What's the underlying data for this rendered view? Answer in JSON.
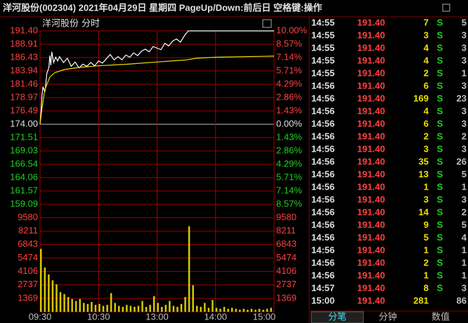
{
  "header": {
    "title": "洋河股份(002304)  2021年04月29日  星期四  PageUp/Down:前后日  空格键:操作"
  },
  "chart_data": {
    "type": "line",
    "title": "洋河股份",
    "subtitle": "分时",
    "xlim": [
      0,
      240
    ],
    "xticks": [
      {
        "value": 0,
        "label": "09:30"
      },
      {
        "value": 60,
        "label": "10:30"
      },
      {
        "value": 120,
        "label": "13:00"
      },
      {
        "value": 180,
        "label": "14:00"
      },
      {
        "value": 240,
        "label": "15:00"
      }
    ],
    "ylim": [
      156.6,
      191.4
    ],
    "yticks": [
      {
        "value": 191.4,
        "label": "191.40"
      },
      188.91,
      186.43,
      183.94,
      181.46,
      178.97,
      176.49,
      {
        "value": 174,
        "label": "174.00"
      },
      171.51,
      169.03,
      166.54,
      164.06,
      161.57,
      159.09
    ],
    "y2lim": [
      -10,
      10
    ],
    "y2ticks": [
      {
        "value": 10,
        "label": "10.00%"
      },
      {
        "value": 8.57,
        "label": "8.57%"
      },
      {
        "value": 7.14,
        "label": "7.14%"
      },
      {
        "value": 5.71,
        "label": "5.71%"
      },
      {
        "value": 4.29,
        "label": "4.29%"
      },
      {
        "value": 2.86,
        "label": "2.86%"
      },
      {
        "value": 1.43,
        "label": "1.43%"
      },
      {
        "value": 0,
        "label": "0.00%"
      },
      {
        "value": -1.43,
        "label": "1.43%"
      },
      {
        "value": -2.86,
        "label": "2.86%"
      },
      {
        "value": -4.29,
        "label": "4.29%"
      },
      {
        "value": -5.71,
        "label": "5.71%"
      },
      {
        "value": -7.14,
        "label": "7.14%"
      },
      {
        "value": -8.57,
        "label": "8.57%"
      }
    ],
    "grid": true,
    "series": [
      {
        "color": "#ffffff",
        "x": [
          0,
          1,
          2,
          3,
          5,
          7,
          9,
          10,
          11,
          12,
          14,
          16,
          18,
          20,
          24,
          28,
          32,
          36,
          40,
          44,
          48,
          52,
          56,
          60,
          64,
          68,
          72,
          76,
          80,
          84,
          88,
          92,
          96,
          100,
          104,
          108,
          112,
          116,
          120,
          124,
          128,
          132,
          136,
          140,
          144,
          148,
          152,
          240
        ],
        "values": [
          174.0,
          176.5,
          179.5,
          181.0,
          180.0,
          183.5,
          184.5,
          186.8,
          185.0,
          187.5,
          185.5,
          186.5,
          185.8,
          186.6,
          185.5,
          186.3,
          184.8,
          185.6,
          184.5,
          185.2,
          184.8,
          185.5,
          184.9,
          185.8,
          185.4,
          186.2,
          187.0,
          186.0,
          186.6,
          186.0,
          186.9,
          186.5,
          187.3,
          186.8,
          187.6,
          188.0,
          187.5,
          188.5,
          188.2,
          187.9,
          189.1,
          188.6,
          189.5,
          189.9,
          189.3,
          190.5,
          191.4,
          191.4
        ]
      },
      {
        "color": "#f0e000",
        "x": [
          0,
          2,
          5,
          10,
          15,
          25,
          40,
          60,
          90,
          120,
          150,
          160,
          180,
          210,
          240
        ],
        "values": [
          174.0,
          177.0,
          180.5,
          182.8,
          183.6,
          184.2,
          184.6,
          184.9,
          185.2,
          185.6,
          186.0,
          186.3,
          186.5,
          186.6,
          186.7
        ]
      }
    ],
    "volume": {
      "type": "bar",
      "color": "#d8c800",
      "ylim": [
        0,
        9580
      ],
      "yticks": [
        9580,
        8211,
        6843,
        5474,
        4106,
        2737,
        1369
      ],
      "x": [
        0,
        4,
        8,
        12,
        16,
        20,
        24,
        28,
        32,
        36,
        40,
        44,
        48,
        52,
        56,
        60,
        64,
        68,
        72,
        76,
        80,
        84,
        88,
        92,
        96,
        100,
        104,
        108,
        112,
        116,
        120,
        124,
        128,
        132,
        136,
        140,
        144,
        148,
        152,
        156,
        160,
        164,
        168,
        172,
        176,
        180,
        184,
        188,
        192,
        196,
        200,
        204,
        208,
        212,
        216,
        220,
        224,
        228,
        232,
        236
      ],
      "values": [
        6400,
        4500,
        3800,
        3200,
        2800,
        2000,
        1800,
        1500,
        1300,
        1100,
        1300,
        900,
        800,
        1000,
        700,
        800,
        600,
        700,
        1900,
        900,
        600,
        500,
        700,
        600,
        500,
        600,
        1100,
        500,
        700,
        1600,
        900,
        500,
        700,
        1100,
        600,
        500,
        800,
        1500,
        8700,
        2700,
        600,
        500,
        900,
        400,
        1200,
        400,
        300,
        500,
        300,
        400,
        300,
        200,
        300,
        200,
        300,
        200,
        300,
        200,
        300,
        400
      ]
    }
  },
  "trades": {
    "rows": [
      [
        "14:55",
        "191.40",
        7,
        "S",
        5
      ],
      [
        "14:55",
        "191.40",
        3,
        "S",
        3
      ],
      [
        "14:55",
        "191.40",
        4,
        "S",
        3
      ],
      [
        "14:55",
        "191.40",
        4,
        "S",
        3
      ],
      [
        "14:55",
        "191.40",
        2,
        "S",
        1
      ],
      [
        "14:56",
        "191.40",
        6,
        "S",
        3
      ],
      [
        "14:56",
        "191.40",
        169,
        "S",
        23
      ],
      [
        "14:56",
        "191.40",
        4,
        "S",
        3
      ],
      [
        "14:56",
        "191.40",
        6,
        "S",
        3
      ],
      [
        "14:56",
        "191.40",
        2,
        "S",
        2
      ],
      [
        "14:56",
        "191.40",
        3,
        "S",
        3
      ],
      [
        "14:56",
        "191.40",
        35,
        "S",
        26
      ],
      [
        "14:56",
        "191.40",
        13,
        "S",
        5
      ],
      [
        "14:56",
        "191.40",
        1,
        "S",
        1
      ],
      [
        "14:56",
        "191.40",
        3,
        "S",
        3
      ],
      [
        "14:56",
        "191.40",
        14,
        "S",
        2
      ],
      [
        "14:56",
        "191.40",
        9,
        "S",
        5
      ],
      [
        "14:56",
        "191.40",
        5,
        "S",
        4
      ],
      [
        "14:56",
        "191.40",
        1,
        "S",
        1
      ],
      [
        "14:56",
        "191.40",
        2,
        "S",
        1
      ],
      [
        "14:56",
        "191.40",
        1,
        "S",
        1
      ],
      [
        "14:57",
        "191.40",
        8,
        "S",
        3
      ],
      [
        "15:00",
        "191.40",
        281,
        null,
        86
      ]
    ]
  },
  "tabs": [
    "分笔",
    "分钟",
    "数值"
  ]
}
